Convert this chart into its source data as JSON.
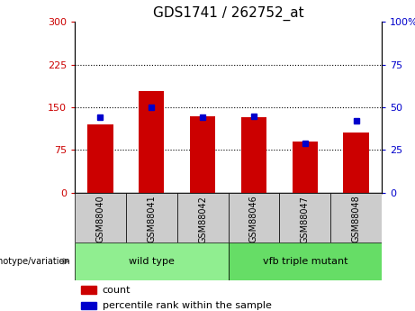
{
  "title": "GDS1741 / 262752_at",
  "categories": [
    "GSM88040",
    "GSM88041",
    "GSM88042",
    "GSM88046",
    "GSM88047",
    "GSM88048"
  ],
  "counts": [
    120,
    178,
    135,
    133,
    90,
    105
  ],
  "percentile_ranks": [
    44,
    50,
    44,
    45,
    29,
    42
  ],
  "ylim_left": [
    0,
    300
  ],
  "ylim_right": [
    0,
    100
  ],
  "yticks_left": [
    0,
    75,
    150,
    225,
    300
  ],
  "yticks_right": [
    0,
    25,
    50,
    75,
    100
  ],
  "ytick_labels_left": [
    "0",
    "75",
    "150",
    "225",
    "300"
  ],
  "ytick_labels_right": [
    "0",
    "25",
    "50",
    "75",
    "100%"
  ],
  "bar_color": "#cc0000",
  "dot_color": "#0000cc",
  "bar_width": 0.5,
  "groups": [
    {
      "label": "wild type",
      "indices": [
        0,
        1,
        2
      ],
      "color": "#90ee90"
    },
    {
      "label": "vfb triple mutant",
      "indices": [
        3,
        4,
        5
      ],
      "color": "#66dd66"
    }
  ],
  "genotype_label": "genotype/variation",
  "legend_count_label": "count",
  "legend_pct_label": "percentile rank within the sample",
  "tick_label_bg": "#cccccc",
  "title_fontsize": 11
}
